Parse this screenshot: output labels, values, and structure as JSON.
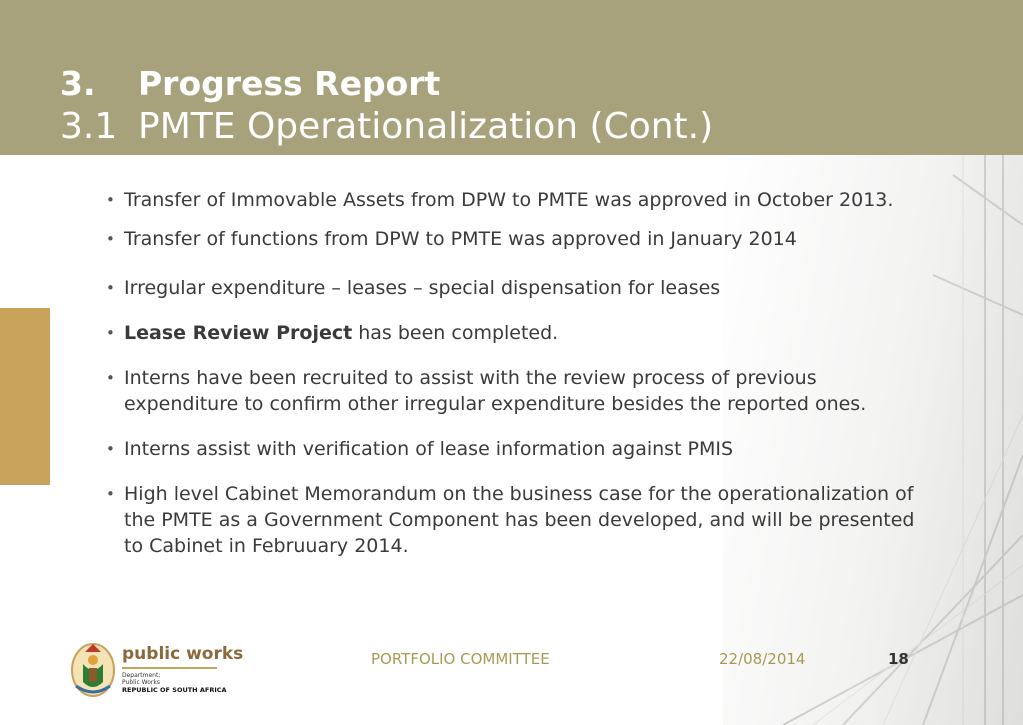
{
  "slide": {
    "title_number": "3.",
    "title_text": "Progress Report",
    "subtitle_number": "3.1",
    "subtitle_text": "PMTE Operationalization (Cont.)"
  },
  "bullets": [
    {
      "text": "Transfer of Immovable Assets from DPW to PMTE was approved in October 2013."
    },
    {
      "text": "Transfer of functions  from DPW to PMTE was approved in January 2014"
    },
    {
      "text": "Irregular expenditure – leases – special dispensation for leases"
    },
    {
      "bold": "Lease Review Project",
      "text": " has been completed."
    },
    {
      "text": "Interns have been recruited to assist with the review process of previous expenditure to confirm other irregular expenditure besides the reported ones."
    },
    {
      "text": "Interns assist with verification of lease information against PMIS"
    },
    {
      "text": "High level Cabinet Memorandum on the business case for the operationalization of the PMTE as a Government Component has been developed, and will be presented to Cabinet in Februuary 2014."
    }
  ],
  "logo": {
    "brand": "public works",
    "dept_line1": "Department:",
    "dept_line2": "Public Works",
    "republic": "REPUBLIC OF SOUTH AFRICA",
    "icon": "coat-of-arms-icon"
  },
  "footer": {
    "committee": "PORTFOLIO COMMITTEE",
    "date": "22/08/2014",
    "page_number": "18"
  },
  "colors": {
    "header": "#a8a27c",
    "accent": "#c9a25b",
    "footer_text": "#a89a55"
  }
}
